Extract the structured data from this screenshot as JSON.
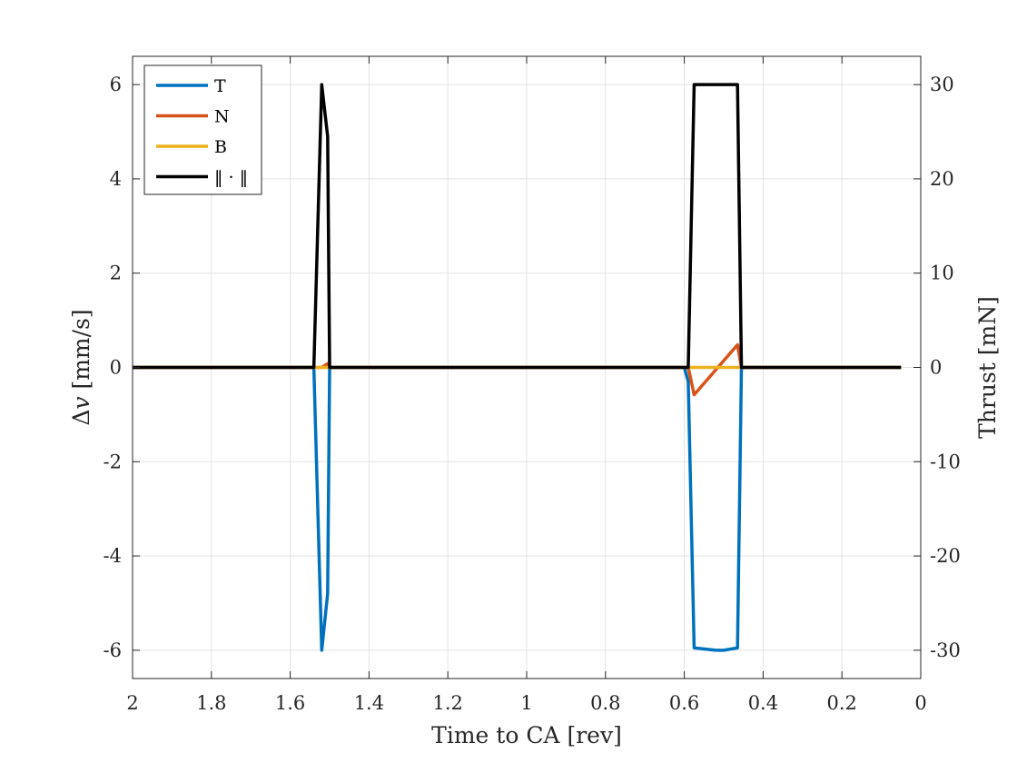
{
  "chart_data": {
    "type": "line",
    "xlabel": "Time to CA [rev]",
    "ylabel_left_prefix": "Δ",
    "ylabel_left_var": "v",
    "ylabel_left_unit": " [mm/s]",
    "ylabel_right": "Thrust [mN]",
    "xlim": [
      2,
      0
    ],
    "x_reversed": true,
    "ylim_left": [
      -6.6,
      6.6
    ],
    "ylim_right": [
      -33,
      33
    ],
    "xticks": [
      2,
      1.8,
      1.6,
      1.4,
      1.2,
      1,
      0.8,
      0.6,
      0.4,
      0.2,
      0
    ],
    "xtick_labels": [
      "2",
      "1.8",
      "1.6",
      "1.4",
      "1.2",
      "1",
      "0.8",
      "0.6",
      "0.4",
      "0.2",
      "0"
    ],
    "yticks_left": [
      6,
      4,
      2,
      0,
      -2,
      -4,
      -6
    ],
    "ytick_labels_left": [
      "6",
      "4",
      "2",
      "0",
      "-2",
      "-4",
      "-6"
    ],
    "yticks_right": [
      30,
      20,
      10,
      0,
      -10,
      -20,
      -30
    ],
    "ytick_labels_right": [
      "30",
      "20",
      "10",
      "0",
      "-10",
      "-20",
      "-30"
    ],
    "grid": true,
    "legend_position": "top-left",
    "series": [
      {
        "name": "T",
        "color": "#0072BD",
        "x": [
          2,
          1.54,
          1.52,
          1.505,
          1.5,
          0.6,
          0.59,
          0.575,
          0.52,
          0.5,
          0.465,
          0.455,
          0.05
        ],
        "y": [
          0,
          0,
          -6,
          -4.8,
          0,
          0,
          -0.3,
          -5.95,
          -6.0,
          -6.0,
          -5.95,
          0,
          0
        ]
      },
      {
        "name": "N",
        "color": "#D95319",
        "x": [
          2,
          1.54,
          1.52,
          1.505,
          1.5,
          0.59,
          0.575,
          0.465,
          0.455,
          0.05
        ],
        "y": [
          0,
          0,
          0,
          0.08,
          0,
          0,
          -0.58,
          0.48,
          0,
          0
        ]
      },
      {
        "name": "B",
        "color": "#EDB120",
        "x": [
          2,
          0.05
        ],
        "y": [
          0,
          0
        ]
      },
      {
        "name": "‖ · ‖",
        "color": "#000000",
        "x": [
          2,
          1.54,
          1.52,
          1.505,
          1.5,
          0.59,
          0.575,
          0.465,
          0.455,
          0.05
        ],
        "y": [
          0,
          0,
          6,
          4.9,
          0,
          0,
          6,
          6,
          0,
          0
        ]
      }
    ]
  }
}
